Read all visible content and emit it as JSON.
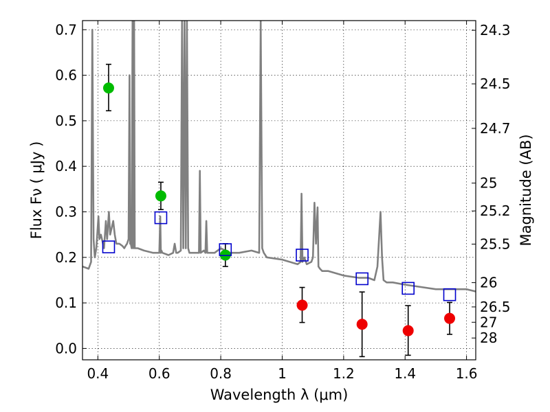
{
  "chart_data": {
    "type": "scatter",
    "xlabel": "Wavelength  λ (μm)",
    "ylabel": "Flux  Fν  ( μJy )",
    "ylabel_right": "Magnitude (AB)",
    "xlim": [
      0.35,
      1.63
    ],
    "ylim": [
      -0.025,
      0.72
    ],
    "grid": true,
    "x_ticks": [
      0.4,
      0.6,
      0.8,
      1.0,
      1.2,
      1.4,
      1.6
    ],
    "x_tick_labels": [
      "0.4",
      "0.6",
      "0.8",
      "1",
      "1.2",
      "1.4",
      "1.6"
    ],
    "y_ticks": [
      0.0,
      0.1,
      0.2,
      0.3,
      0.4,
      0.5,
      0.6,
      0.7
    ],
    "y_tick_labels": [
      "0.0",
      "0.1",
      "0.2",
      "0.3",
      "0.4",
      "0.5",
      "0.6",
      "0.7"
    ],
    "right_ticks": [
      {
        "flux": 0.6987,
        "label": "24.3"
      },
      {
        "flux": 0.5811,
        "label": "24.5"
      },
      {
        "flux": 0.4833,
        "label": "24.7"
      },
      {
        "flux": 0.3631,
        "label": "25"
      },
      {
        "flux": 0.302,
        "label": "25.2"
      },
      {
        "flux": 0.2291,
        "label": "25.5"
      },
      {
        "flux": 0.1445,
        "label": "26"
      },
      {
        "flux": 0.0912,
        "label": "26.5"
      },
      {
        "flux": 0.0575,
        "label": "27"
      },
      {
        "flux": 0.0229,
        "label": "28"
      }
    ],
    "colors": {
      "template": "#808080",
      "green": "#00bb00",
      "red": "#ee0000",
      "blue": "#0000cc",
      "errorbar": "#000000"
    },
    "series": [
      {
        "marker": "circle",
        "color": "#00bb00",
        "x": [
          0.435,
          0.605,
          0.815
        ],
        "y": [
          0.572,
          0.335,
          0.205
        ],
        "err_low": [
          0.05,
          0.03,
          0.025
        ],
        "err_high": [
          0.052,
          0.03,
          0.025
        ]
      },
      {
        "marker": "circle",
        "color": "#ee0000",
        "x": [
          1.065,
          1.26,
          1.41,
          1.545
        ],
        "y": [
          0.095,
          0.053,
          0.039,
          0.066
        ],
        "err_low": [
          0.038,
          0.071,
          0.054,
          0.035
        ],
        "err_high": [
          0.039,
          0.071,
          0.055,
          0.035
        ]
      },
      {
        "marker": "square-open",
        "color": "#0000cc",
        "x": [
          0.435,
          0.605,
          0.815,
          1.065,
          1.26,
          1.41,
          1.545
        ],
        "y": [
          0.223,
          0.287,
          0.217,
          0.205,
          0.153,
          0.132,
          0.118
        ]
      },
      {
        "marker": "line",
        "color": "#808080",
        "x": [
          0.35,
          0.37,
          0.378,
          0.382,
          0.386,
          0.39,
          0.395,
          0.4,
          0.402,
          0.405,
          0.41,
          0.42,
          0.426,
          0.43,
          0.436,
          0.44,
          0.45,
          0.455,
          0.46,
          0.47,
          0.48,
          0.486,
          0.49,
          0.495,
          0.5,
          0.503,
          0.505,
          0.507,
          0.51,
          0.513,
          0.515,
          0.518,
          0.52,
          0.53,
          0.55,
          0.58,
          0.6,
          0.603,
          0.605,
          0.607,
          0.61,
          0.63,
          0.645,
          0.65,
          0.655,
          0.66,
          0.67,
          0.674,
          0.678,
          0.682,
          0.686,
          0.69,
          0.694,
          0.698,
          0.7,
          0.72,
          0.729,
          0.732,
          0.735,
          0.745,
          0.75,
          0.753,
          0.756,
          0.76,
          0.78,
          0.8,
          0.83,
          0.86,
          0.9,
          0.925,
          0.93,
          0.935,
          0.94,
          0.95,
          1.0,
          1.05,
          1.06,
          1.063,
          1.066,
          1.072,
          1.08,
          1.095,
          1.1,
          1.105,
          1.11,
          1.115,
          1.118,
          1.123,
          1.13,
          1.15,
          1.2,
          1.25,
          1.28,
          1.3,
          1.31,
          1.32,
          1.325,
          1.33,
          1.34,
          1.36,
          1.4,
          1.45,
          1.5,
          1.55,
          1.6,
          1.63
        ],
        "y": [
          0.18,
          0.175,
          0.19,
          0.7,
          0.24,
          0.2,
          0.22,
          0.27,
          0.29,
          0.24,
          0.25,
          0.22,
          0.28,
          0.24,
          0.3,
          0.25,
          0.28,
          0.25,
          0.23,
          0.23,
          0.225,
          0.22,
          0.225,
          0.23,
          0.24,
          0.6,
          0.23,
          0.23,
          0.22,
          0.72,
          0.22,
          0.72,
          0.22,
          0.22,
          0.215,
          0.21,
          0.21,
          0.29,
          0.21,
          0.215,
          0.21,
          0.205,
          0.21,
          0.23,
          0.21,
          0.21,
          0.215,
          0.72,
          0.22,
          0.72,
          0.22,
          0.72,
          0.22,
          0.21,
          0.21,
          0.21,
          0.21,
          0.39,
          0.21,
          0.215,
          0.21,
          0.28,
          0.21,
          0.21,
          0.21,
          0.22,
          0.21,
          0.21,
          0.215,
          0.21,
          0.72,
          0.22,
          0.21,
          0.2,
          0.195,
          0.185,
          0.19,
          0.34,
          0.19,
          0.2,
          0.185,
          0.19,
          0.2,
          0.32,
          0.23,
          0.31,
          0.18,
          0.175,
          0.17,
          0.17,
          0.16,
          0.155,
          0.155,
          0.15,
          0.18,
          0.3,
          0.2,
          0.15,
          0.145,
          0.145,
          0.14,
          0.135,
          0.13,
          0.13,
          0.13,
          0.125
        ]
      }
    ]
  }
}
